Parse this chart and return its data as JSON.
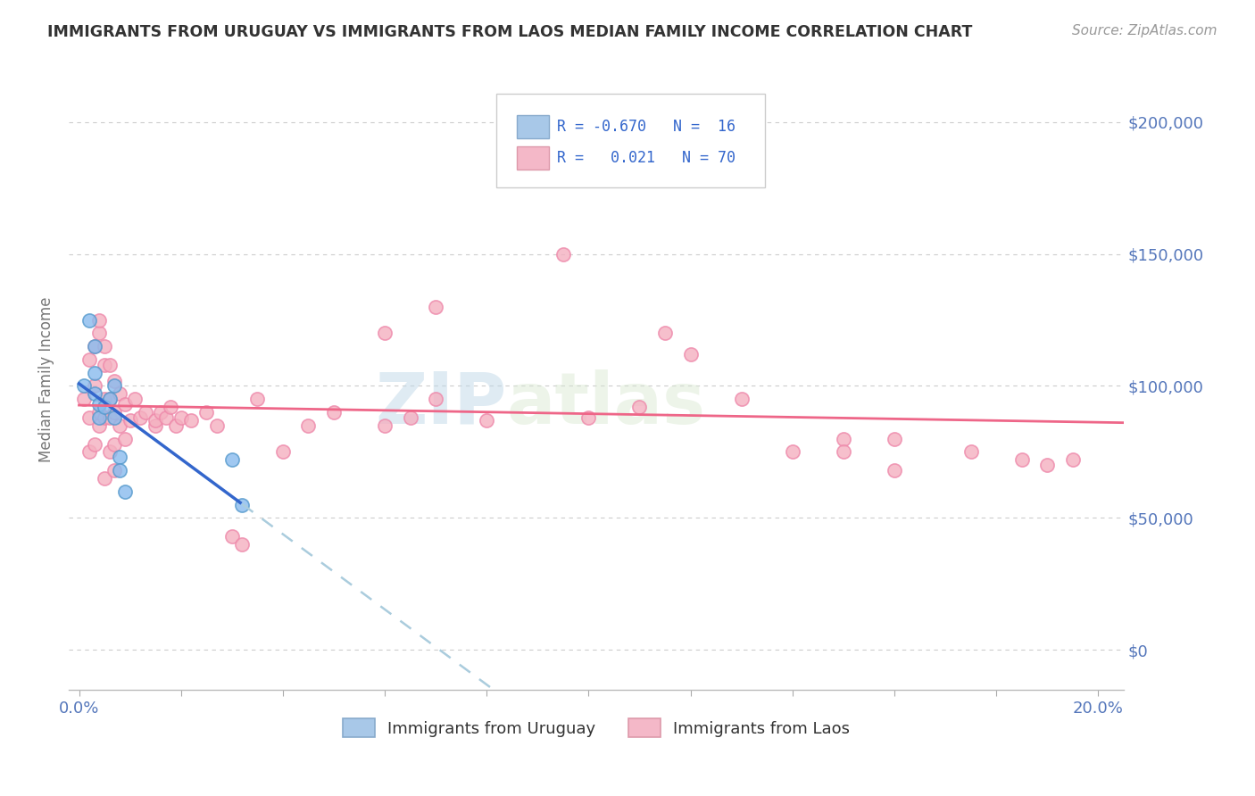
{
  "title": "IMMIGRANTS FROM URUGUAY VS IMMIGRANTS FROM LAOS MEDIAN FAMILY INCOME CORRELATION CHART",
  "source": "Source: ZipAtlas.com",
  "ylabel": "Median Family Income",
  "legend_uruguay_label": "Immigrants from Uruguay",
  "legend_laos_label": "Immigrants from Laos",
  "watermark_part1": "ZIP",
  "watermark_part2": "atlas",
  "background_color": "#ffffff",
  "grid_color": "#cccccc",
  "ytick_values": [
    0,
    50000,
    100000,
    150000,
    200000
  ],
  "ylim": [
    -15000,
    220000
  ],
  "xlim": [
    -0.002,
    0.205
  ],
  "title_color": "#333333",
  "source_color": "#999999",
  "tick_label_color": "#5577bb",
  "uruguay_dot_color": "#88bbee",
  "uruguay_dot_edge": "#5599cc",
  "laos_dot_color": "#f4b0c0",
  "laos_dot_edge": "#ee88aa",
  "uruguay_line_color": "#3366cc",
  "laos_line_color": "#ee6688",
  "dashed_line_color": "#aaccdd",
  "legend_uru_color": "#a8c8e8",
  "legend_laos_color": "#f4b8c8",
  "uru_x": [
    0.001,
    0.002,
    0.003,
    0.003,
    0.004,
    0.004,
    0.005,
    0.006,
    0.007,
    0.007,
    0.008,
    0.008,
    0.009,
    0.03,
    0.032,
    0.003
  ],
  "uru_y": [
    100000,
    125000,
    105000,
    97000,
    88000,
    93000,
    92000,
    95000,
    100000,
    88000,
    73000,
    68000,
    60000,
    72000,
    55000,
    115000
  ],
  "laos_x": [
    0.001,
    0.002,
    0.002,
    0.002,
    0.003,
    0.003,
    0.003,
    0.004,
    0.004,
    0.004,
    0.004,
    0.005,
    0.005,
    0.005,
    0.005,
    0.005,
    0.006,
    0.006,
    0.006,
    0.006,
    0.007,
    0.007,
    0.007,
    0.007,
    0.008,
    0.008,
    0.009,
    0.009,
    0.01,
    0.011,
    0.012,
    0.013,
    0.015,
    0.015,
    0.016,
    0.017,
    0.018,
    0.019,
    0.02,
    0.022,
    0.025,
    0.027,
    0.03,
    0.032,
    0.035,
    0.04,
    0.045,
    0.05,
    0.06,
    0.065,
    0.07,
    0.08,
    0.09,
    0.095,
    0.1,
    0.11,
    0.115,
    0.12,
    0.13,
    0.14,
    0.15,
    0.16,
    0.175,
    0.185,
    0.19,
    0.195,
    0.06,
    0.07,
    0.15,
    0.16
  ],
  "laos_y": [
    95000,
    88000,
    110000,
    75000,
    100000,
    115000,
    78000,
    120000,
    125000,
    85000,
    90000,
    108000,
    95000,
    88000,
    115000,
    65000,
    108000,
    95000,
    88000,
    75000,
    102000,
    90000,
    78000,
    68000,
    97000,
    85000,
    93000,
    80000,
    87000,
    95000,
    88000,
    90000,
    85000,
    87000,
    90000,
    88000,
    92000,
    85000,
    88000,
    87000,
    90000,
    85000,
    43000,
    40000,
    95000,
    75000,
    85000,
    90000,
    85000,
    88000,
    95000,
    87000,
    178000,
    150000,
    88000,
    92000,
    120000,
    112000,
    95000,
    75000,
    80000,
    68000,
    75000,
    72000,
    70000,
    72000,
    120000,
    130000,
    75000,
    80000
  ]
}
